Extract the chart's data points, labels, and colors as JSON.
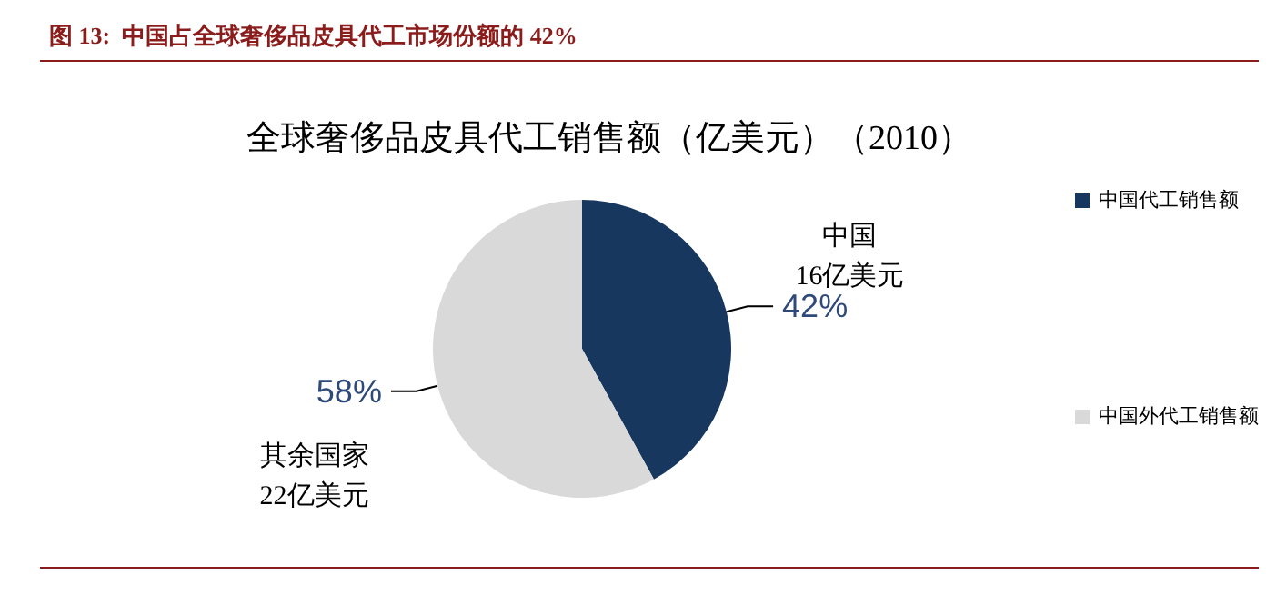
{
  "chart_data": {
    "type": "pie",
    "title": "图 13:  中国占全球奢侈品皮具代工市场份额的 42%",
    "subtitle": "全球奢侈品皮具代工销售额（亿美元）（2010）",
    "categories": [
      "中国代工销售额",
      "中国外代工销售额"
    ],
    "values": [
      42,
      58
    ],
    "colors": [
      "#17375e",
      "#d9d9d9"
    ],
    "value_labels": [
      "42%",
      "58%"
    ],
    "annotations": [
      "中国\n16亿美元",
      "其余国家\n22亿美元"
    ],
    "legend": "right"
  }
}
